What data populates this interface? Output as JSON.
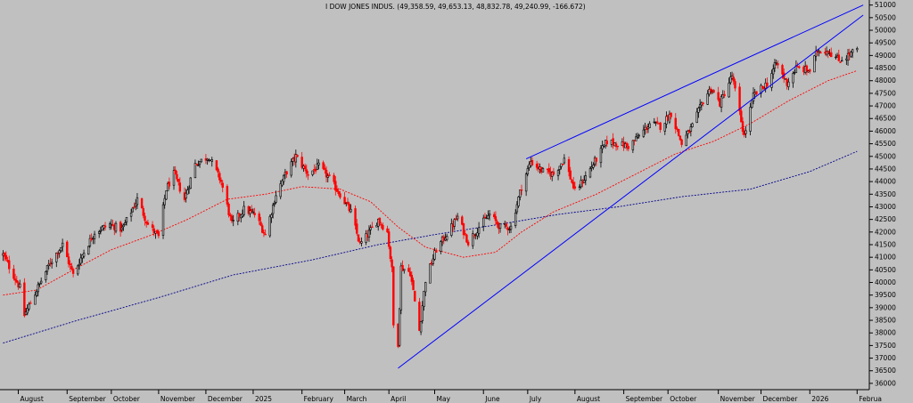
{
  "chart_data": {
    "type": "candlestick",
    "title": "I DOW JONES INDUS. (49,358.59, 49,653.13, 48,832.78, 49,240.99, -166.672)",
    "ylim": [
      35750,
      51200
    ],
    "y_ticks": [
      51000,
      50500,
      50000,
      49500,
      49000,
      48500,
      48000,
      47500,
      47000,
      46500,
      46000,
      45500,
      45000,
      44500,
      44000,
      43500,
      43000,
      42500,
      42000,
      41500,
      41000,
      40500,
      40000,
      39500,
      39000,
      38500,
      38000,
      37500,
      37000,
      36500,
      36000
    ],
    "month_labels": [
      "August",
      "September",
      "October",
      "November",
      "December",
      "2025",
      "February",
      "March",
      "April",
      "May",
      "June",
      "July",
      "August",
      "September",
      "October",
      "November",
      "December",
      "2026",
      "Februa"
    ],
    "colors": {
      "up": "#000000",
      "up_fill": "#c0c0c0",
      "down": "#ff0000",
      "ma_short": "#ff0000",
      "ma_long": "#00008b",
      "trendline": "#0000ff",
      "background": "#c0c0c0"
    },
    "price_path": [
      [
        "2024-07-22",
        41100
      ],
      [
        "2024-08-02",
        39800
      ],
      [
        "2024-08-05",
        38700
      ],
      [
        "2024-08-13",
        39700
      ],
      [
        "2024-08-22",
        40800
      ],
      [
        "2024-08-30",
        41500
      ],
      [
        "2024-09-06",
        40300
      ],
      [
        "2024-09-12",
        41100
      ],
      [
        "2024-09-20",
        42000
      ],
      [
        "2024-09-30",
        42300
      ],
      [
        "2024-10-08",
        42100
      ],
      [
        "2024-10-18",
        43300
      ],
      [
        "2024-10-25",
        42300
      ],
      [
        "2024-11-01",
        41800
      ],
      [
        "2024-11-06",
        43700
      ],
      [
        "2024-11-11",
        44300
      ],
      [
        "2024-11-18",
        43300
      ],
      [
        "2024-11-25",
        44700
      ],
      [
        "2024-12-04",
        45000
      ],
      [
        "2024-12-12",
        44000
      ],
      [
        "2024-12-19",
        42300
      ],
      [
        "2024-12-27",
        42900
      ],
      [
        "2025-01-03",
        42700
      ],
      [
        "2025-01-10",
        41900
      ],
      [
        "2025-01-17",
        43500
      ],
      [
        "2025-01-24",
        44400
      ],
      [
        "2025-01-30",
        45000
      ],
      [
        "2025-02-07",
        44300
      ],
      [
        "2025-02-14",
        44600
      ],
      [
        "2025-02-20",
        44200
      ],
      [
        "2025-02-28",
        43500
      ],
      [
        "2025-03-07",
        42800
      ],
      [
        "2025-03-13",
        41500
      ],
      [
        "2025-03-17",
        41800
      ],
      [
        "2025-03-25",
        42500
      ],
      [
        "2025-03-31",
        42000
      ],
      [
        "2025-04-03",
        40500
      ],
      [
        "2025-04-04",
        38300
      ],
      [
        "2025-04-07",
        37600
      ],
      [
        "2025-04-09",
        40600
      ],
      [
        "2025-04-15",
        40400
      ],
      [
        "2025-04-21",
        38100
      ],
      [
        "2025-04-25",
        40100
      ],
      [
        "2025-05-02",
        41300
      ],
      [
        "2025-05-12",
        42200
      ],
      [
        "2025-05-16",
        42600
      ],
      [
        "2025-05-23",
        41600
      ],
      [
        "2025-05-30",
        42200
      ],
      [
        "2025-06-06",
        42700
      ],
      [
        "2025-06-13",
        42200
      ],
      [
        "2025-06-20",
        42200
      ],
      [
        "2025-06-27",
        43800
      ],
      [
        "2025-07-03",
        44800
      ],
      [
        "2025-07-11",
        44400
      ],
      [
        "2025-07-18",
        44300
      ],
      [
        "2025-07-25",
        44900
      ],
      [
        "2025-08-01",
        43600
      ],
      [
        "2025-08-08",
        44200
      ],
      [
        "2025-08-15",
        44900
      ],
      [
        "2025-08-22",
        45600
      ],
      [
        "2025-08-29",
        45500
      ],
      [
        "2025-09-05",
        45400
      ],
      [
        "2025-09-12",
        45800
      ],
      [
        "2025-09-19",
        46300
      ],
      [
        "2025-09-26",
        46200
      ],
      [
        "2025-10-03",
        46700
      ],
      [
        "2025-10-10",
        45500
      ],
      [
        "2025-10-17",
        46200
      ],
      [
        "2025-10-24",
        47200
      ],
      [
        "2025-10-29",
        47700
      ],
      [
        "2025-11-04",
        47100
      ],
      [
        "2025-11-12",
        48200
      ],
      [
        "2025-11-20",
        45800
      ],
      [
        "2025-11-26",
        47400
      ],
      [
        "2025-12-05",
        47900
      ],
      [
        "2025-12-11",
        48700
      ],
      [
        "2025-12-18",
        47900
      ],
      [
        "2025-12-24",
        48500
      ],
      [
        "2026-01-02",
        48400
      ],
      [
        "2026-01-07",
        49200
      ],
      [
        "2026-01-14",
        49200
      ],
      [
        "2026-01-21",
        48800
      ],
      [
        "2026-01-27",
        49000
      ],
      [
        "2026-02-02",
        49240
      ]
    ],
    "ma_short_path": [
      [
        "2024-07-22",
        39500
      ],
      [
        "2024-08-13",
        39700
      ],
      [
        "2024-09-06",
        40500
      ],
      [
        "2024-10-01",
        41300
      ],
      [
        "2024-10-28",
        41900
      ],
      [
        "2024-11-20",
        42500
      ],
      [
        "2024-12-16",
        43300
      ],
      [
        "2025-01-10",
        43500
      ],
      [
        "2025-02-03",
        43800
      ],
      [
        "2025-02-28",
        43700
      ],
      [
        "2025-03-20",
        43200
      ],
      [
        "2025-04-07",
        42200
      ],
      [
        "2025-04-25",
        41400
      ],
      [
        "2025-05-20",
        41000
      ],
      [
        "2025-06-10",
        41200
      ],
      [
        "2025-06-27",
        42000
      ],
      [
        "2025-07-18",
        42800
      ],
      [
        "2025-08-15",
        43500
      ],
      [
        "2025-09-10",
        44300
      ],
      [
        "2025-10-06",
        45100
      ],
      [
        "2025-10-31",
        45600
      ],
      [
        "2025-11-24",
        46300
      ],
      [
        "2025-12-19",
        47200
      ],
      [
        "2026-01-14",
        48000
      ],
      [
        "2026-02-02",
        48400
      ]
    ],
    "ma_long_path": [
      [
        "2024-07-22",
        37600
      ],
      [
        "2024-09-09",
        38500
      ],
      [
        "2024-11-01",
        39400
      ],
      [
        "2024-12-20",
        40300
      ],
      [
        "2025-02-10",
        40900
      ],
      [
        "2025-03-25",
        41500
      ],
      [
        "2025-05-01",
        41900
      ],
      [
        "2025-06-12",
        42300
      ],
      [
        "2025-07-21",
        42700
      ],
      [
        "2025-08-29",
        43000
      ],
      [
        "2025-10-10",
        43400
      ],
      [
        "2025-11-24",
        43700
      ],
      [
        "2026-01-02",
        44400
      ],
      [
        "2026-02-02",
        45200
      ]
    ],
    "trendlines": [
      {
        "from": [
          "2025-04-07",
          36600
        ],
        "to": [
          "2026-02-06",
          50600
        ]
      },
      {
        "from": [
          "2025-06-30",
          44900
        ],
        "to": [
          "2026-02-06",
          51000
        ]
      }
    ]
  }
}
